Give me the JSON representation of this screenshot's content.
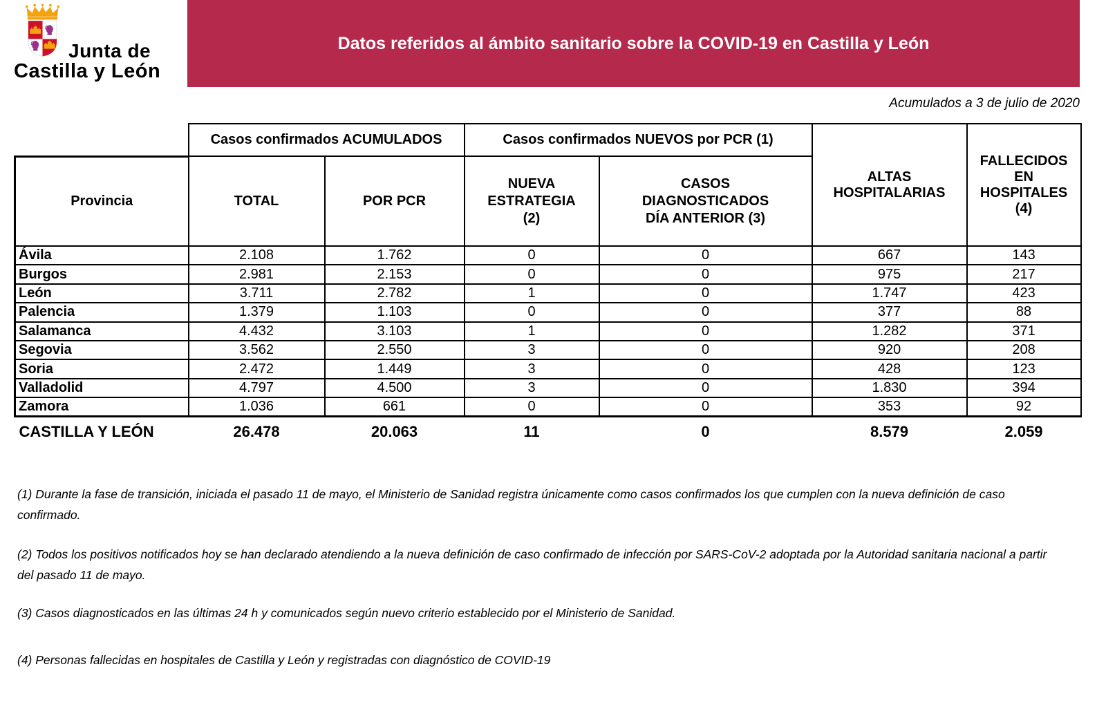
{
  "logo": {
    "line1": "Junta de",
    "line2": "Castilla y León",
    "crest_colors": {
      "crown_gold": "#F2A30F",
      "field_red": "#CE1126",
      "field_white": "#FFFFFF",
      "castle_gold": "#F2A30F",
      "lion_purple": "#9C2E88"
    }
  },
  "banner": {
    "title": "Datos referidos al ámbito sanitario sobre la COVID-19 en Castilla y León",
    "bg_color": "#B4294C",
    "text_color": "#FFFFFF"
  },
  "date_note": "Acumulados a 3 de julio de 2020",
  "table": {
    "group_headers": {
      "acumulados": "Casos confirmados ACUMULADOS",
      "nuevos": "Casos confirmados NUEVOS por PCR (1)"
    },
    "columns": {
      "provincia": "Provincia",
      "total": "TOTAL",
      "por_pcr": "POR PCR",
      "nueva_estrategia": "NUEVA ESTRATEGIA (2)",
      "diag_dia_anterior": "CASOS DIAGNOSTICADOS DÍA ANTERIOR (3)",
      "altas": "ALTAS HOSPITALARIAS",
      "fallecidos": "FALLECIDOS EN HOSPITALES (4)"
    },
    "rows": [
      {
        "provincia": "Ávila",
        "total": "2.108",
        "por_pcr": "1.762",
        "nueva_estrategia": "0",
        "diag_dia_anterior": "0",
        "altas": "667",
        "fallecidos": "143"
      },
      {
        "provincia": "Burgos",
        "total": "2.981",
        "por_pcr": "2.153",
        "nueva_estrategia": "0",
        "diag_dia_anterior": "0",
        "altas": "975",
        "fallecidos": "217"
      },
      {
        "provincia": "León",
        "total": "3.711",
        "por_pcr": "2.782",
        "nueva_estrategia": "1",
        "diag_dia_anterior": "0",
        "altas": "1.747",
        "fallecidos": "423"
      },
      {
        "provincia": "Palencia",
        "total": "1.379",
        "por_pcr": "1.103",
        "nueva_estrategia": "0",
        "diag_dia_anterior": "0",
        "altas": "377",
        "fallecidos": "88"
      },
      {
        "provincia": "Salamanca",
        "total": "4.432",
        "por_pcr": "3.103",
        "nueva_estrategia": "1",
        "diag_dia_anterior": "0",
        "altas": "1.282",
        "fallecidos": "371"
      },
      {
        "provincia": "Segovia",
        "total": "3.562",
        "por_pcr": "2.550",
        "nueva_estrategia": "3",
        "diag_dia_anterior": "0",
        "altas": "920",
        "fallecidos": "208"
      },
      {
        "provincia": "Soria",
        "total": "2.472",
        "por_pcr": "1.449",
        "nueva_estrategia": "3",
        "diag_dia_anterior": "0",
        "altas": "428",
        "fallecidos": "123"
      },
      {
        "provincia": "Valladolid",
        "total": "4.797",
        "por_pcr": "4.500",
        "nueva_estrategia": "3",
        "diag_dia_anterior": "0",
        "altas": "1.830",
        "fallecidos": "394"
      },
      {
        "provincia": "Zamora",
        "total": "1.036",
        "por_pcr": "661",
        "nueva_estrategia": "0",
        "diag_dia_anterior": "0",
        "altas": "353",
        "fallecidos": "92"
      }
    ],
    "total_row": {
      "provincia": "CASTILLA Y LEÓN",
      "total": "26.478",
      "por_pcr": "20.063",
      "nueva_estrategia": "11",
      "diag_dia_anterior": "0",
      "altas": "8.579",
      "fallecidos": "2.059"
    }
  },
  "footnotes": [
    "(1) Durante la fase de transición, iniciada el pasado 11 de mayo, el Ministerio de Sanidad registra únicamente como casos confirmados los que cumplen con la nueva definición de caso confirmado.",
    "(2) Todos los positivos notificados hoy se han declarado atendiendo a la nueva definición de caso confirmado de infección por SARS-CoV-2 adoptada por la Autoridad sanitaria nacional a partir del pasado 11 de mayo.",
    "(3) Casos diagnosticados en las últimas 24 h y comunicados según nuevo criterio establecido por el Ministerio de Sanidad.",
    "(4) Personas fallecidas en hospitales de Castilla y León y registradas con diagnóstico de COVID-19"
  ]
}
